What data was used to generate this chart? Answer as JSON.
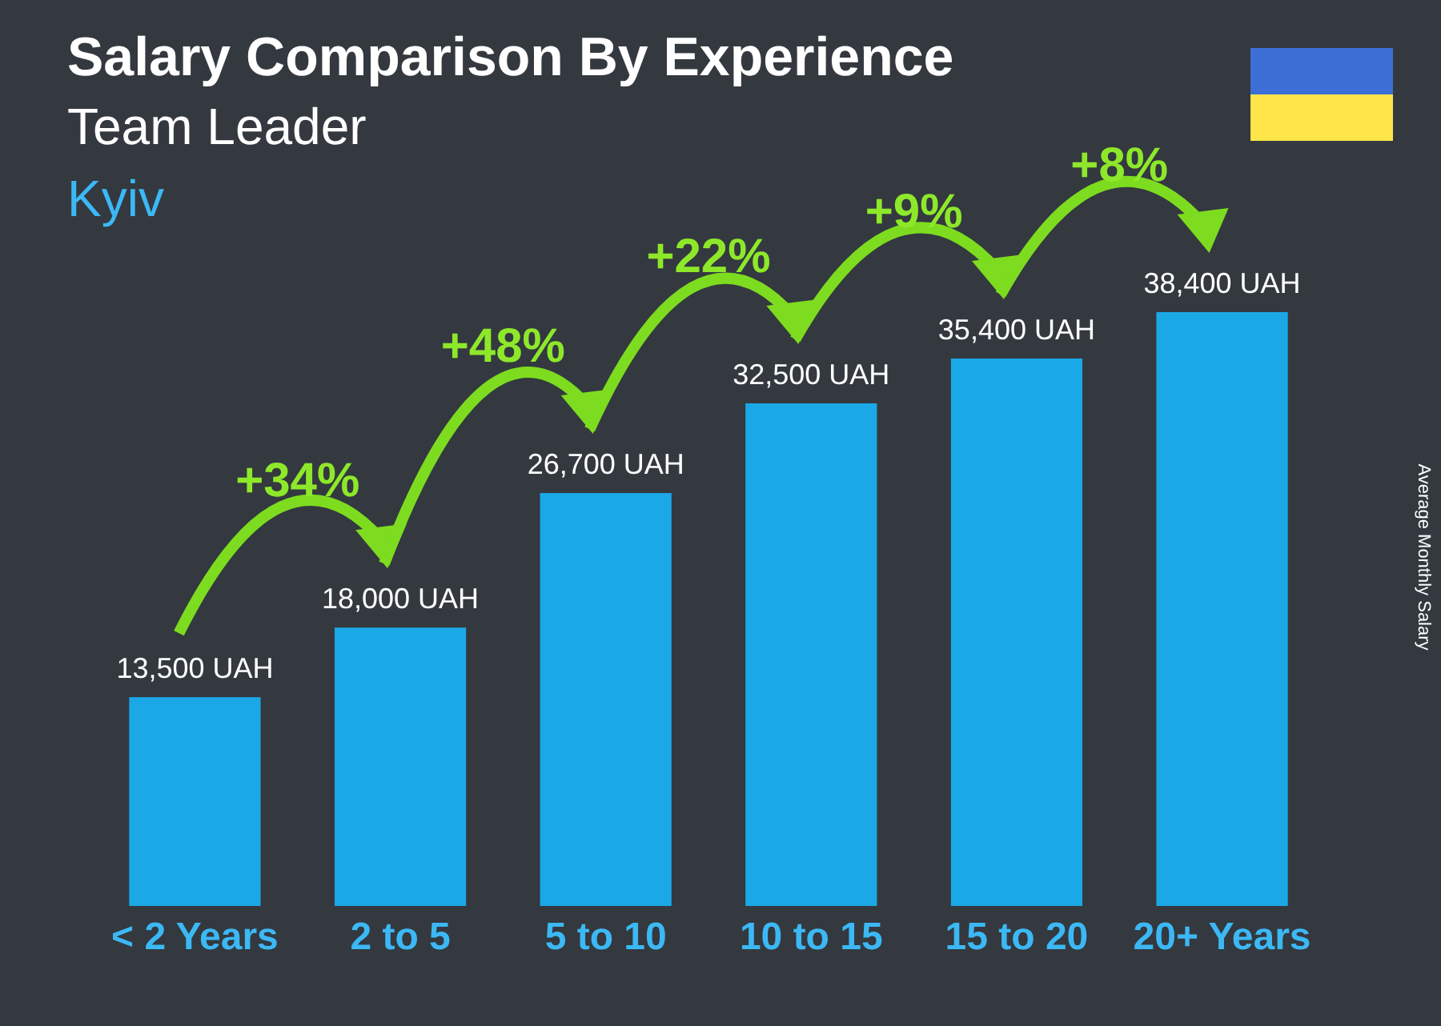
{
  "chart_data": {
    "type": "bar",
    "title": "Salary Comparison By Experience",
    "subtitle": "Team Leader\nKyiv",
    "categories": [
      "< 2 Years",
      "2 to 5",
      "5 to 10",
      "10 to 15",
      "15 to 20",
      "20+ Years"
    ],
    "values": [
      13500,
      18000,
      26700,
      32500,
      35400,
      38400
    ],
    "color": "#1ba8e6",
    "value_labels": [
      "13,500 UAH",
      "18,000 UAH",
      "26,700 UAH",
      "32,500 UAH",
      "35,400 UAH",
      "38,400 UAH"
    ],
    "annotations": [
      "+34%",
      "+48%",
      "+22%",
      "+9%",
      "+8%",
      "Average Monthly Salary"
    ]
  }
}
